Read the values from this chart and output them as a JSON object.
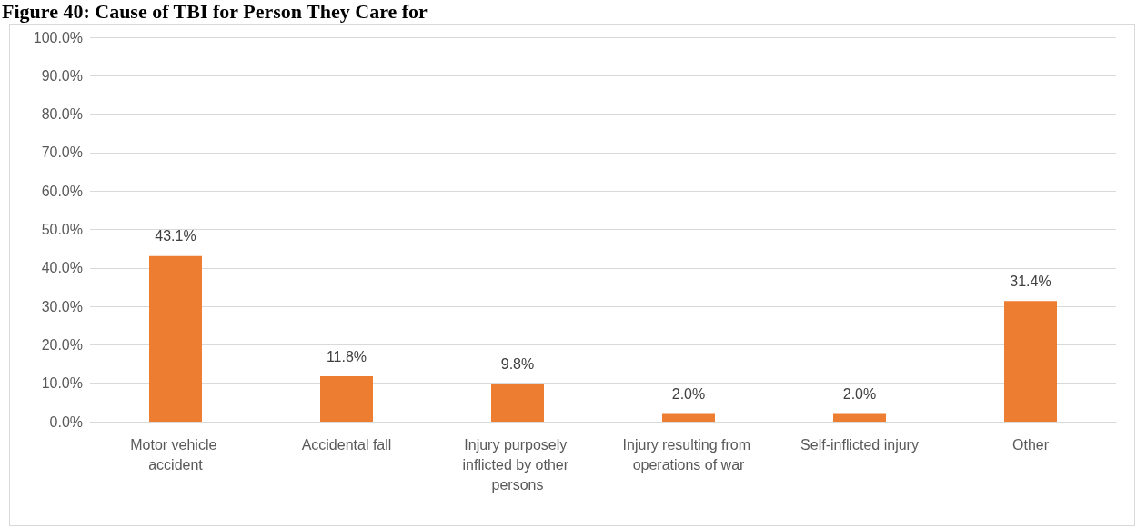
{
  "chart_data": {
    "type": "bar",
    "title": "Figure 40: Cause of TBI for Person They Care for",
    "categories": [
      "Motor vehicle accident",
      "Accidental fall",
      "Injury purposely inflicted by other persons",
      "Injury resulting from operations of war",
      "Self-inflicted injury",
      "Other"
    ],
    "values": [
      43.1,
      11.8,
      9.8,
      2.0,
      2.0,
      31.4
    ],
    "value_labels": [
      "43.1%",
      "11.8%",
      "9.8%",
      "2.0%",
      "2.0%",
      "31.4%"
    ],
    "color": "#ed7d31",
    "ylim": [
      0,
      100
    ],
    "yticks": [
      {
        "value": 0,
        "label": "0.0%"
      },
      {
        "value": 10,
        "label": "10.0%"
      },
      {
        "value": 20,
        "label": "20.0%"
      },
      {
        "value": 30,
        "label": "30.0%"
      },
      {
        "value": 40,
        "label": "40.0%"
      },
      {
        "value": 50,
        "label": "50.0%"
      },
      {
        "value": 60,
        "label": "60.0%"
      },
      {
        "value": 70,
        "label": "70.0%"
      },
      {
        "value": 80,
        "label": "80.0%"
      },
      {
        "value": 90,
        "label": "90.0%"
      },
      {
        "value": 100,
        "label": "100.0%"
      }
    ],
    "grid": "y"
  }
}
